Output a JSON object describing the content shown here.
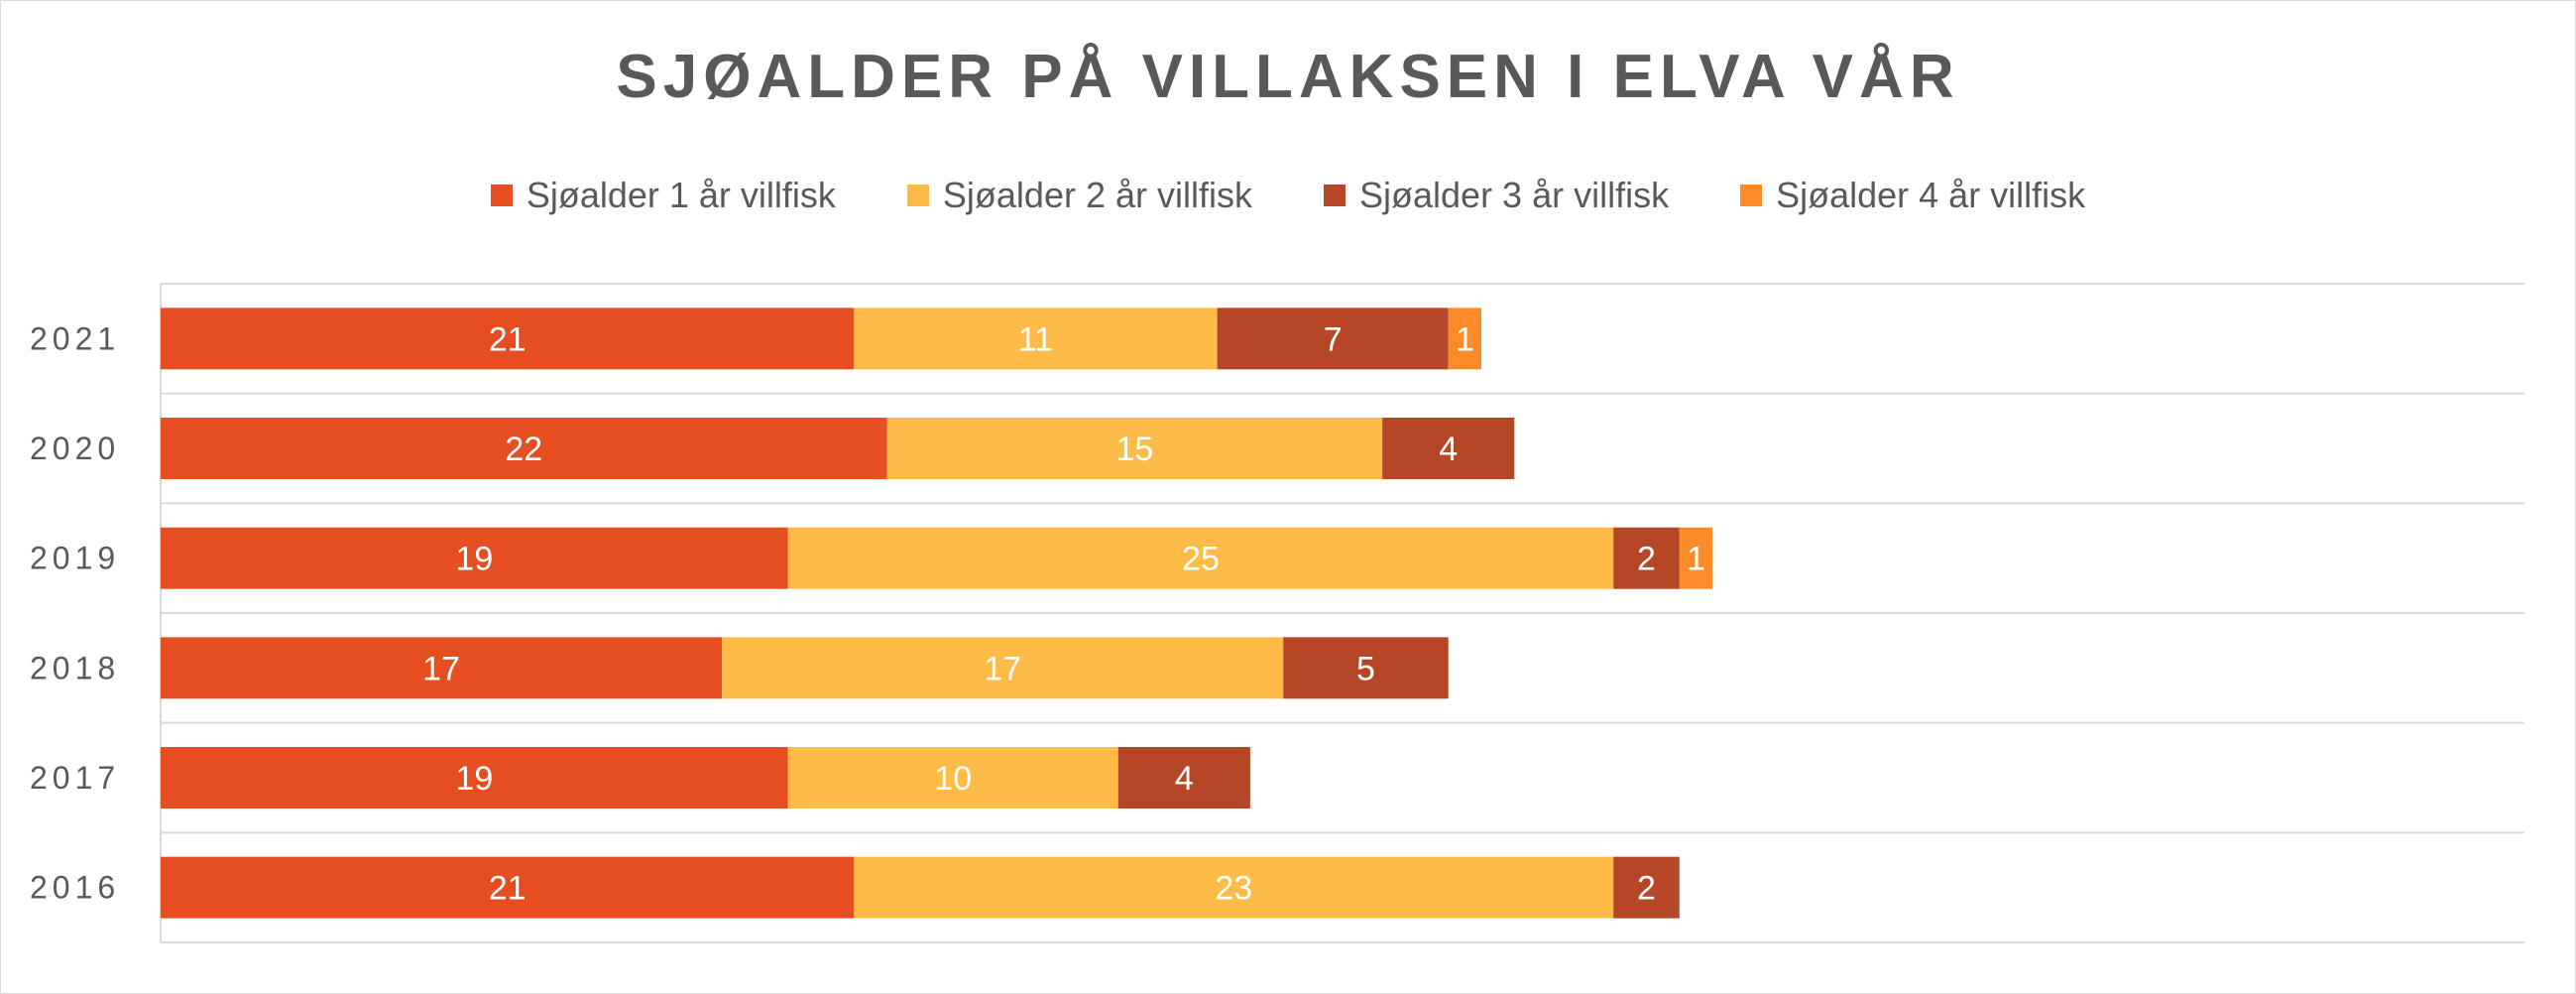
{
  "chart_data": {
    "type": "bar",
    "orientation": "horizontal",
    "stacked": true,
    "title": "SJØALDER PÅ VILLAKSEN I ELVA VÅR",
    "categories": [
      "2021",
      "2020",
      "2019",
      "2018",
      "2017",
      "2016"
    ],
    "series": [
      {
        "name": "Sjøalder 1 år villfisk",
        "color": "#E64E22",
        "values": [
          21,
          22,
          19,
          17,
          19,
          21
        ]
      },
      {
        "name": "Sjøalder 2 år villfisk",
        "color": "#FFBB47",
        "values": [
          11,
          15,
          25,
          17,
          10,
          23
        ]
      },
      {
        "name": "Sjøalder 3 år villfisk",
        "color": "#B54726",
        "values": [
          7,
          4,
          2,
          5,
          4,
          2
        ]
      },
      {
        "name": "Sjøalder 4 år villfisk",
        "color": "#FF8A2A",
        "values": [
          1,
          0,
          1,
          0,
          0,
          0
        ]
      }
    ],
    "xlim": [
      0,
      50
    ],
    "grid": true,
    "legend_position": "top"
  }
}
